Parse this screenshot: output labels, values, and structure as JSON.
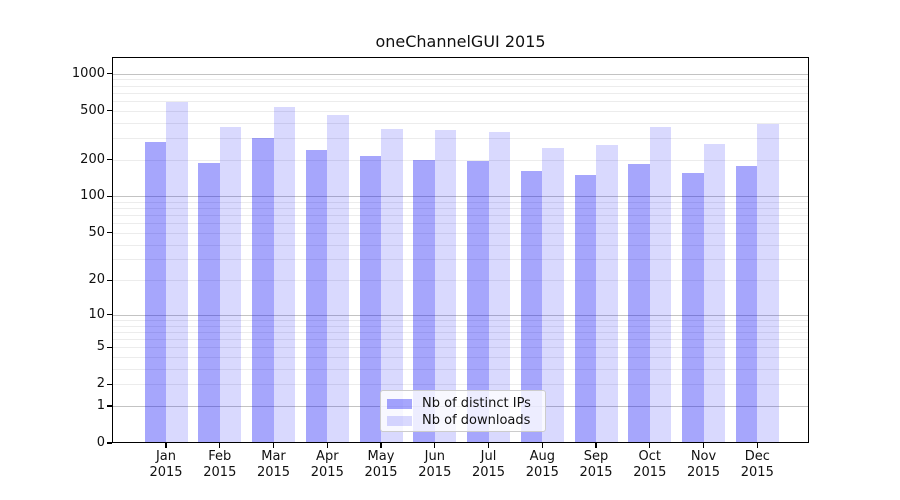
{
  "figure": {
    "background": "#ffffff"
  },
  "chart_data": {
    "type": "bar",
    "title": "oneChannelGUI 2015",
    "categories": [
      "Jan 2015",
      "Feb 2015",
      "Mar 2015",
      "Apr 2015",
      "May 2015",
      "Jun 2015",
      "Jul 2015",
      "Aug 2015",
      "Sep 2015",
      "Oct 2015",
      "Nov 2015",
      "Dec 2015"
    ],
    "series": [
      {
        "name": "Nb of distinct IPs",
        "color": "rgba(0,0,245,0.35)",
        "solid_hex": "#a6a6fa",
        "values": [
          280,
          187,
          300,
          237,
          215,
          197,
          193,
          160,
          150,
          183,
          155,
          176
        ]
      },
      {
        "name": "Nb of downloads",
        "color": "rgba(0,0,245,0.15)",
        "solid_hex": "#d9d9fc",
        "values": [
          590,
          370,
          535,
          460,
          352,
          345,
          335,
          250,
          265,
          365,
          268,
          392
        ]
      }
    ],
    "y_scale": "log10(1+y)",
    "y_ticks": [
      0,
      1,
      2,
      5,
      10,
      20,
      50,
      100,
      200,
      500,
      1000
    ],
    "y_major_gridlines": [
      1,
      10,
      100,
      1000
    ],
    "y_minor_gridlines": [
      2,
      3,
      4,
      5,
      6,
      7,
      8,
      9,
      20,
      30,
      40,
      50,
      60,
      70,
      80,
      90,
      200,
      300,
      400,
      500,
      600,
      700,
      800,
      900
    ],
    "grid": true,
    "legend_position": "lower center"
  },
  "colors": {
    "major_grid": "#c3c3c3",
    "minor_grid": "#ececec",
    "spine": "#000000",
    "text": "#111111",
    "legend_border": "#cccccc"
  }
}
